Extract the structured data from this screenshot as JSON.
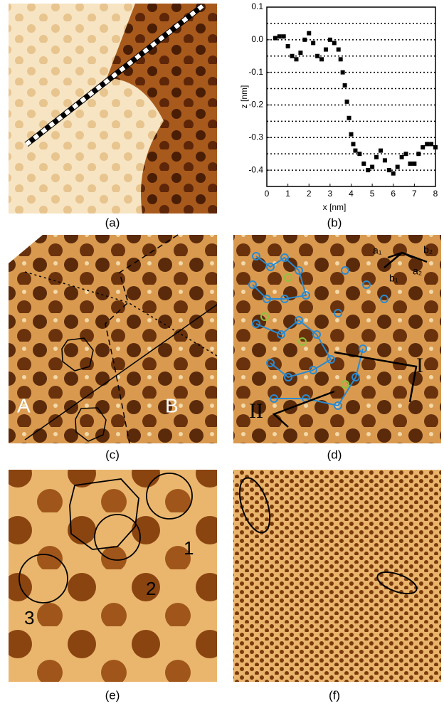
{
  "panel_labels": [
    "(a)",
    "(b)",
    "(c)",
    "(d)",
    "(e)",
    "(f)"
  ],
  "panel_c": {
    "labels": [
      "A",
      "B"
    ]
  },
  "panel_d": {
    "labels": [
      "a₁",
      "b₁",
      "a₂",
      "b₂",
      "I",
      "II"
    ]
  },
  "panel_e": {
    "labels": [
      "1",
      "2",
      "3"
    ]
  },
  "chart_data": {
    "type": "scatter",
    "xlabel": "x [nm]",
    "ylabel": "z [nm]",
    "color": "#000000",
    "x": [
      0.4,
      0.6,
      0.8,
      1.0,
      1.2,
      1.4,
      1.6,
      1.8,
      2.0,
      2.2,
      2.4,
      2.6,
      2.8,
      3.0,
      3.2,
      3.4,
      3.5,
      3.6,
      3.7,
      3.8,
      3.9,
      4.0,
      4.1,
      4.2,
      4.4,
      4.6,
      4.8,
      5.0,
      5.2,
      5.4,
      5.6,
      5.8,
      6.0,
      6.2,
      6.4,
      6.6,
      6.8,
      7.0,
      7.2,
      7.4,
      7.6,
      7.8,
      8.0
    ],
    "values": [
      0.005,
      0.01,
      0.01,
      -0.02,
      -0.05,
      -0.06,
      -0.04,
      0.0,
      0.02,
      -0.01,
      -0.05,
      -0.06,
      -0.03,
      0.0,
      -0.01,
      -0.03,
      -0.06,
      -0.1,
      -0.14,
      -0.19,
      -0.24,
      -0.29,
      -0.32,
      -0.34,
      -0.35,
      -0.38,
      -0.4,
      -0.39,
      -0.36,
      -0.34,
      -0.37,
      -0.4,
      -0.41,
      -0.39,
      -0.36,
      -0.35,
      -0.38,
      -0.38,
      -0.35,
      -0.33,
      -0.32,
      -0.32,
      -0.33
    ],
    "xlim": [
      0,
      8
    ],
    "xticks": [
      0,
      1,
      2,
      3,
      4,
      5,
      6,
      7,
      8
    ],
    "ylim": [
      -0.45,
      0.1
    ],
    "yticks": [
      0.1,
      {
        "value": 0,
        "label": "0.0"
      },
      -0.1,
      -0.2,
      -0.3,
      -0.4
    ],
    "grid_lines": [
      0.05,
      0,
      -0.05,
      -0.1,
      -0.15,
      -0.2,
      -0.25,
      -0.3,
      -0.35,
      -0.4
    ]
  }
}
